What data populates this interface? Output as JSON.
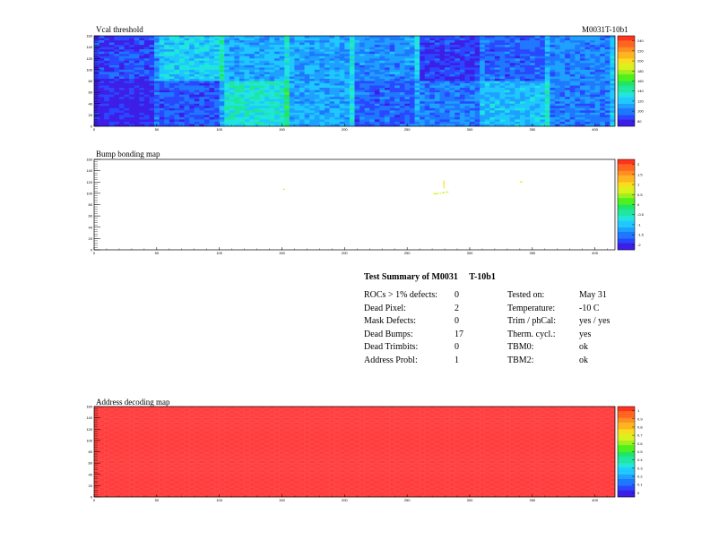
{
  "module_id": "M0031T-10b1",
  "summary": {
    "title": "Test Summary of M0031     T-10b1",
    "left_rows": [
      {
        "label": "ROCs > 1% defects:",
        "value": "0"
      },
      {
        "label": "Dead Pixel:",
        "value": "2"
      },
      {
        "label": "Mask Defects:",
        "value": "0"
      },
      {
        "label": "Dead Bumps:",
        "value": "17"
      },
      {
        "label": "Dead Trimbits:",
        "value": "0"
      },
      {
        "label": "Address Probl:",
        "value": "1"
      }
    ],
    "right_rows": [
      {
        "label": "Tested on:",
        "value": "May 31"
      },
      {
        "label": "Temperature:",
        "value": "-10 C"
      },
      {
        "label": "Trim / phCal:",
        "value": "yes / yes"
      },
      {
        "label": "Therm. cycl.:",
        "value": "yes"
      },
      {
        "label": "TBM0:",
        "value": "ok"
      },
      {
        "label": "TBM2:",
        "value": "ok"
      }
    ]
  },
  "chart_data": [
    {
      "type": "heatmap",
      "title": "Vcal threshold",
      "x_ticks": [
        "0",
        "50",
        "100",
        "150",
        "200",
        "250",
        "300",
        "350",
        "400"
      ],
      "y_ticks": [
        "0",
        "20",
        "40",
        "60",
        "80",
        "100",
        "120",
        "140",
        "160"
      ],
      "xlim": [
        0,
        416
      ],
      "ylim": [
        0,
        160
      ],
      "color_scale": [
        "80",
        "100",
        "120",
        "140",
        "160",
        "180",
        "200",
        "220",
        "240"
      ],
      "roc_means_top": [
        95,
        130,
        120,
        118,
        112,
        92,
        102,
        110
      ],
      "roc_means_bottom": [
        85,
        100,
        140,
        120,
        102,
        108,
        125,
        108
      ]
    },
    {
      "type": "heatmap",
      "title": "Bump bonding map",
      "x_ticks": [
        "0",
        "50",
        "100",
        "150",
        "200",
        "250",
        "300",
        "350",
        "400"
      ],
      "y_ticks": [
        "0",
        "20",
        "40",
        "60",
        "80",
        "100",
        "120",
        "140",
        "160"
      ],
      "xlim": [
        0,
        416
      ],
      "ylim": [
        0,
        160
      ],
      "color_scale": [
        "-2",
        "-1.5",
        "-1",
        "-0.5",
        "0",
        "0.5",
        "1",
        "1.5",
        "2"
      ],
      "dead_bumps": [
        {
          "x": 151,
          "y": 107,
          "v": 0.4
        },
        {
          "x": 271,
          "y": 99,
          "v": 0.5
        },
        {
          "x": 272,
          "y": 99,
          "v": 0.5
        },
        {
          "x": 273,
          "y": 99,
          "v": 0.5
        },
        {
          "x": 274,
          "y": 100,
          "v": 0.5
        },
        {
          "x": 276,
          "y": 100,
          "v": 0.5
        },
        {
          "x": 278,
          "y": 101,
          "v": 0.4
        },
        {
          "x": 279,
          "y": 101,
          "v": 0.5
        },
        {
          "x": 281,
          "y": 102,
          "v": 0.5
        },
        {
          "x": 282,
          "y": 102,
          "v": 0.5
        },
        {
          "x": 279,
          "y": 110,
          "v": 0.8
        },
        {
          "x": 279,
          "y": 113,
          "v": 0.8
        },
        {
          "x": 279,
          "y": 116,
          "v": 0.9
        },
        {
          "x": 279,
          "y": 118,
          "v": 0.8
        },
        {
          "x": 279,
          "y": 121,
          "v": 0.9
        },
        {
          "x": 340,
          "y": 120,
          "v": 0.5
        },
        {
          "x": 341,
          "y": 120,
          "v": 0.5
        }
      ]
    },
    {
      "type": "heatmap",
      "title": "Address decoding map",
      "x_ticks": [
        "0",
        "50",
        "100",
        "150",
        "200",
        "250",
        "300",
        "350",
        "400"
      ],
      "y_ticks": [
        "0",
        "20",
        "40",
        "60",
        "80",
        "100",
        "120",
        "140",
        "160"
      ],
      "xlim": [
        0,
        416
      ],
      "ylim": [
        0,
        160
      ],
      "color_scale": [
        "0",
        "0.1",
        "0.2",
        "0.3",
        "0.4",
        "0.5",
        "0.6",
        "0.7",
        "0.8",
        "0.9",
        "1"
      ],
      "uniform_value": 1
    }
  ]
}
